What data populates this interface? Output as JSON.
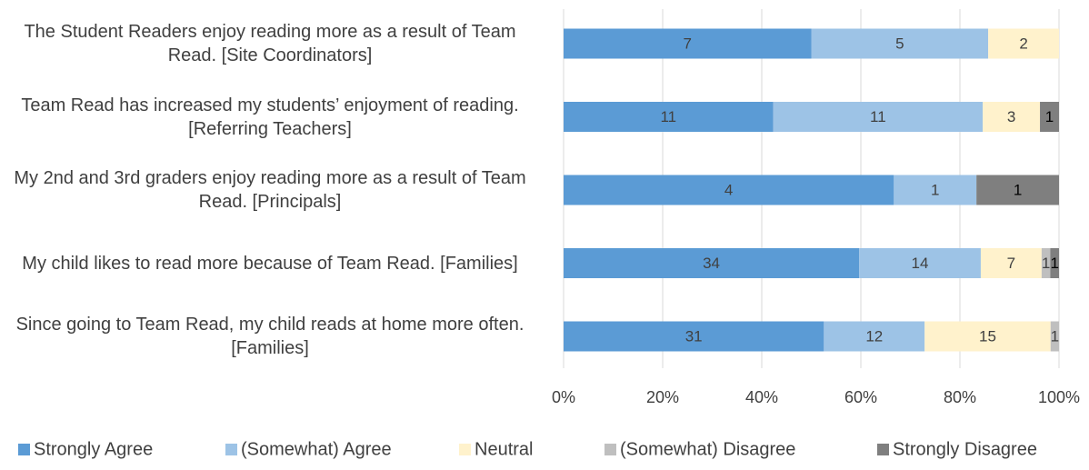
{
  "chart_data": {
    "type": "bar",
    "orientation": "horizontal",
    "stacked": "percent",
    "categories": [
      "The Student Readers enjoy reading more as a result of Team Read. [Site Coordinators]",
      "Team Read has increased my students’ enjoyment of reading. [Referring Teachers]",
      "My 2nd and 3rd graders enjoy reading more as a result of Team Read. [Principals]",
      "My child likes to read more because of Team Read. [Families]",
      "Since going to Team Read, my child reads at home more often. [Families]"
    ],
    "series": [
      {
        "name": "Strongly Agree",
        "color": "#5b9bd5",
        "values": [
          7,
          11,
          4,
          34,
          31
        ]
      },
      {
        "name": "(Somewhat) Agree",
        "color": "#9dc3e6",
        "values": [
          5,
          11,
          1,
          14,
          12
        ]
      },
      {
        "name": "Neutral",
        "color": "#fff2cc",
        "values": [
          2,
          3,
          0,
          7,
          15
        ]
      },
      {
        "name": "(Somewhat) Disagree",
        "color": "#bfbfbf",
        "values": [
          0,
          0,
          0,
          1,
          1
        ]
      },
      {
        "name": "Strongly Disagree",
        "color": "#7f7f7f",
        "values": [
          0,
          1,
          1,
          1,
          0
        ]
      }
    ],
    "xlim": [
      0,
      100
    ],
    "xticks": [
      {
        "value": 0,
        "label": "0%"
      },
      {
        "value": 20,
        "label": "20%"
      },
      {
        "value": 40,
        "label": "40%"
      },
      {
        "value": 60,
        "label": "60%"
      },
      {
        "value": 80,
        "label": "80%"
      },
      {
        "value": 100,
        "label": "100%"
      }
    ],
    "grid": true,
    "legend": "bottom"
  }
}
